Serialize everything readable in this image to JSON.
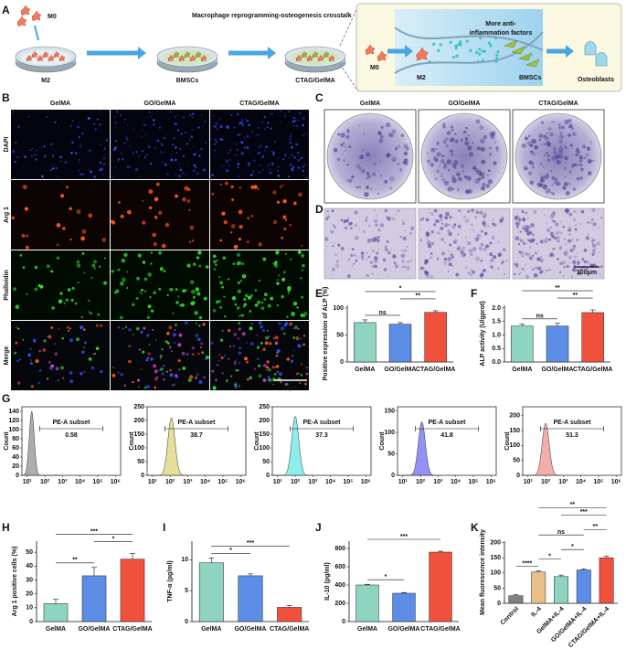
{
  "panel_labels": [
    "A",
    "B",
    "C",
    "D",
    "E",
    "F",
    "G",
    "H",
    "I",
    "J",
    "K"
  ],
  "schematic": {
    "title": "Macrophage reprogramming-osteogenesis crosstalk",
    "m0": "M0",
    "m2": "M2",
    "bmscs": "BMSCs",
    "scaffold": "CTAG/GelMA",
    "inset": {
      "m0": "M0",
      "factors": [
        "More anti-",
        "inflammation factors"
      ],
      "m2": "M2",
      "bmscs": "BMSCs",
      "result": "Osteoblasts"
    }
  },
  "microscopy": {
    "columns": [
      "GelMA",
      "GO/GelMA",
      "CTAG/GelMA"
    ],
    "rows": [
      "DAPI",
      "Arg 1",
      "Phalloidin",
      "Merge"
    ],
    "scale_bar": "50μm"
  },
  "staining": {
    "columns": [
      "GelMA",
      "GO/GelMA",
      "CTAG/GelMA"
    ],
    "scale_bar": "100μm"
  },
  "flow": {
    "y_label": "Count",
    "gate_label": "PE-A subset",
    "log_x": true,
    "xlim": [
      5,
      2000000
    ],
    "xticks": [
      {
        "value": 10,
        "label": "10¹"
      },
      {
        "value": 100,
        "label": "10²"
      },
      {
        "value": 1000,
        "label": "10³"
      },
      {
        "value": 10000,
        "label": "10⁴"
      },
      {
        "value": 100000,
        "label": "10⁵"
      },
      {
        "value": 1000000,
        "label": "10⁶"
      }
    ],
    "gate": [
      50,
      200000
    ],
    "plots": [
      {
        "subset": 0.58,
        "color": "#8a8a8a",
        "ylim": [
          0,
          150
        ],
        "yticks": [
          0,
          20,
          40,
          60,
          80,
          100,
          120,
          140
        ],
        "peak_x": 18,
        "peak": 140
      },
      {
        "subset": 38.7,
        "color": "#d8d36e",
        "ylim": [
          0,
          250
        ],
        "yticks": [
          0,
          50,
          100,
          150,
          200,
          250
        ],
        "peak_x": 120,
        "peak": 210
      },
      {
        "subset": 37.3,
        "color": "#5ee6e6",
        "ylim": [
          0,
          250
        ],
        "yticks": [
          0,
          50,
          100,
          150,
          200,
          250
        ],
        "peak_x": 100,
        "peak": 215
      },
      {
        "subset": 41.8,
        "color": "#6464f0",
        "ylim": [
          0,
          160
        ],
        "yticks": [
          0,
          50,
          100,
          150
        ],
        "peak_x": 120,
        "peak": 125
      },
      {
        "subset": 51.3,
        "color": "#f08a8a",
        "ylim": [
          0,
          230
        ],
        "yticks": [
          0,
          50,
          100,
          150,
          200
        ],
        "peak_x": 100,
        "peak": 175
      }
    ]
  },
  "chart_data": [
    {
      "type": "bar",
      "y_label": "Positive expression of ALP (%)",
      "categories": [
        "GelMA",
        "GO/GelMA",
        "CTAG/GelMA"
      ],
      "colors": [
        "#8fd3c1",
        "#5b8de6",
        "#f0513c"
      ],
      "values": [
        73,
        70,
        92
      ],
      "errors": [
        5,
        3,
        3
      ],
      "ylim": [
        0,
        105
      ],
      "yticks": [
        0,
        50,
        100
      ],
      "significance": [
        {
          "pair": [
            0,
            1
          ],
          "label": "ns"
        },
        {
          "pair": [
            1,
            2
          ],
          "label": "**"
        },
        {
          "pair": [
            0,
            2
          ],
          "label": "*"
        }
      ]
    },
    {
      "type": "bar",
      "y_label": "ALP activity (U/gprot)",
      "categories": [
        "GelMA",
        "GO/GelMA",
        "CTAG/GelMA"
      ],
      "colors": [
        "#8fd3c1",
        "#5b8de6",
        "#f0513c"
      ],
      "values": [
        1.33,
        1.33,
        1.83
      ],
      "errors": [
        0.07,
        0.1,
        0.1
      ],
      "ylim": [
        0,
        2.1
      ],
      "yticks": [
        {
          "value": 0,
          "label": "0.0"
        },
        0.5,
        {
          "value": 1,
          "label": "1.0"
        },
        1.5,
        {
          "value": 2,
          "label": "2.0"
        }
      ],
      "significance": [
        {
          "pair": [
            0,
            1
          ],
          "label": "ns"
        },
        {
          "pair": [
            1,
            2
          ],
          "label": "**"
        },
        {
          "pair": [
            0,
            2
          ],
          "label": "**"
        }
      ]
    },
    {
      "type": "bar",
      "y_label": "Arg 1 positive cells (%)",
      "categories": [
        "GelMA",
        "GO/GelMA",
        "CTAG/GelMA"
      ],
      "colors": [
        "#8fd3c1",
        "#5b8de6",
        "#f0513c"
      ],
      "values": [
        13,
        33,
        45
      ],
      "errors": [
        3,
        6,
        4
      ],
      "ylim": [
        0,
        58
      ],
      "yticks": [
        0,
        10,
        20,
        30,
        40,
        50
      ],
      "significance": [
        {
          "pair": [
            0,
            1
          ],
          "label": "**"
        },
        {
          "pair": [
            1,
            2
          ],
          "label": "*"
        },
        {
          "pair": [
            0,
            2
          ],
          "label": "***"
        }
      ]
    },
    {
      "type": "bar",
      "y_label": "TNF-α (pg/ml)",
      "categories": [
        "GelMA",
        "GO/GelMA",
        "CTAG/GelMA"
      ],
      "colors": [
        "#8fd3c1",
        "#5b8de6",
        "#f0513c"
      ],
      "values": [
        9.5,
        7.4,
        2.3
      ],
      "errors": [
        0.8,
        0.3,
        0.3
      ],
      "ylim": [
        0,
        13
      ],
      "yticks": [
        0,
        5,
        10
      ],
      "significance": [
        {
          "pair": [
            0,
            1
          ],
          "label": "*"
        },
        {
          "pair": [
            0,
            2
          ],
          "label": "***"
        }
      ]
    },
    {
      "type": "bar",
      "y_label": "IL-10 (pg/ml)",
      "categories": [
        "GelMA",
        "GO/GelMA",
        "CTAG/GelMA"
      ],
      "colors": [
        "#8fd3c1",
        "#5b8de6",
        "#f0513c"
      ],
      "values": [
        400,
        310,
        760
      ],
      "errors": [
        8,
        8,
        10
      ],
      "ylim": [
        0,
        880
      ],
      "yticks": [
        0,
        200,
        400,
        600,
        800
      ],
      "significance": [
        {
          "pair": [
            0,
            1
          ],
          "label": "*"
        },
        {
          "pair": [
            0,
            2
          ],
          "label": "***"
        }
      ]
    },
    {
      "type": "bar",
      "y_label": "Mean fluorescence intensity",
      "categories": [
        "Control",
        "IL-4",
        "GelMA+IL-4",
        "GO/GelMA+IL-4",
        "CTAG/GelMA+IL-4"
      ],
      "colors": [
        "#808080",
        "#e9c089",
        "#8fd3c1",
        "#5b8de6",
        "#f0513c"
      ],
      "values": [
        25,
        103,
        88,
        110,
        150
      ],
      "errors": [
        3,
        4,
        5,
        4,
        6
      ],
      "ylim": [
        0,
        205
      ],
      "yticks": [
        0,
        50,
        100,
        150,
        200
      ],
      "significance": [
        {
          "pair": [
            0,
            1
          ],
          "label": "****"
        },
        {
          "pair": [
            1,
            2
          ],
          "label": "*"
        },
        {
          "pair": [
            2,
            3
          ],
          "label": "*"
        },
        {
          "pair": [
            3,
            4
          ],
          "label": "**"
        },
        {
          "pair": [
            1,
            3
          ],
          "label": "ns"
        },
        {
          "pair": [
            2,
            4
          ],
          "label": "***"
        },
        {
          "pair": [
            1,
            4
          ],
          "label": "**"
        }
      ]
    }
  ]
}
